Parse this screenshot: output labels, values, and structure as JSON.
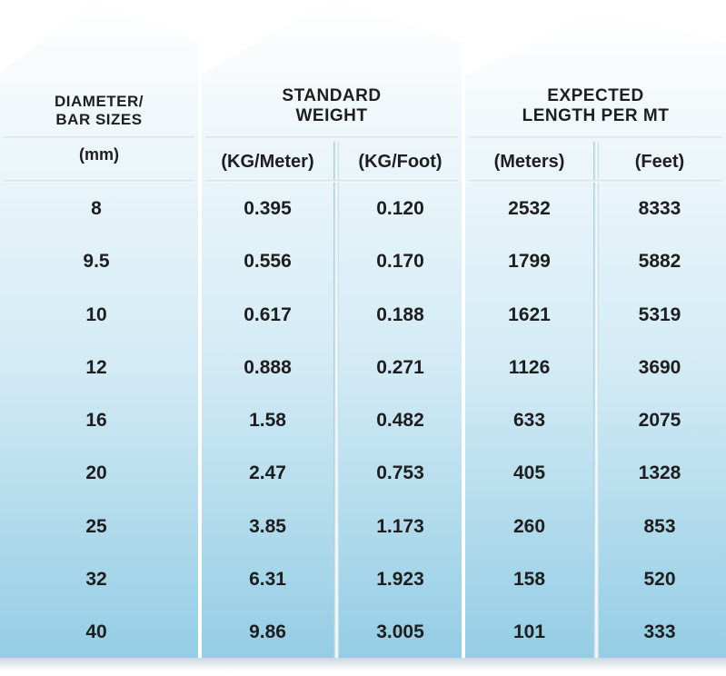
{
  "headers": {
    "diameter": [
      "DIAMETER/",
      "BAR SIZES"
    ],
    "weight": [
      "STANDARD",
      "WEIGHT"
    ],
    "length": [
      "EXPECTED",
      "LENGTH PER MT"
    ]
  },
  "subheaders": {
    "mm": "(mm)",
    "kg_meter": "(KG/Meter)",
    "kg_foot": "(KG/Foot)",
    "meters": "(Meters)",
    "feet": "(Feet)"
  },
  "rows": [
    {
      "size": "8",
      "kg_m": "0.395",
      "kg_ft": "0.120",
      "meters": "2532",
      "feet": "8333"
    },
    {
      "size": "9.5",
      "kg_m": "0.556",
      "kg_ft": "0.170",
      "meters": "1799",
      "feet": "5882"
    },
    {
      "size": "10",
      "kg_m": "0.617",
      "kg_ft": "0.188",
      "meters": "1621",
      "feet": "5319"
    },
    {
      "size": "12",
      "kg_m": "0.888",
      "kg_ft": "0.271",
      "meters": "1126",
      "feet": "3690"
    },
    {
      "size": "16",
      "kg_m": "1.58",
      "kg_ft": "0.482",
      "meters": "633",
      "feet": "2075"
    },
    {
      "size": "20",
      "kg_m": "2.47",
      "kg_ft": "0.753",
      "meters": "405",
      "feet": "1328"
    },
    {
      "size": "25",
      "kg_m": "3.85",
      "kg_ft": "1.173",
      "meters": "260",
      "feet": "853"
    },
    {
      "size": "32",
      "kg_m": "6.31",
      "kg_ft": "1.923",
      "meters": "158",
      "feet": "520"
    },
    {
      "size": "40",
      "kg_m": "9.86",
      "kg_ft": "3.005",
      "meters": "101",
      "feet": "333"
    }
  ],
  "colors": {
    "panel_top": "#ffffff",
    "panel_mid": "#d9eef7",
    "panel_bottom": "#8fcbe4",
    "text": "#1e1e1e"
  }
}
